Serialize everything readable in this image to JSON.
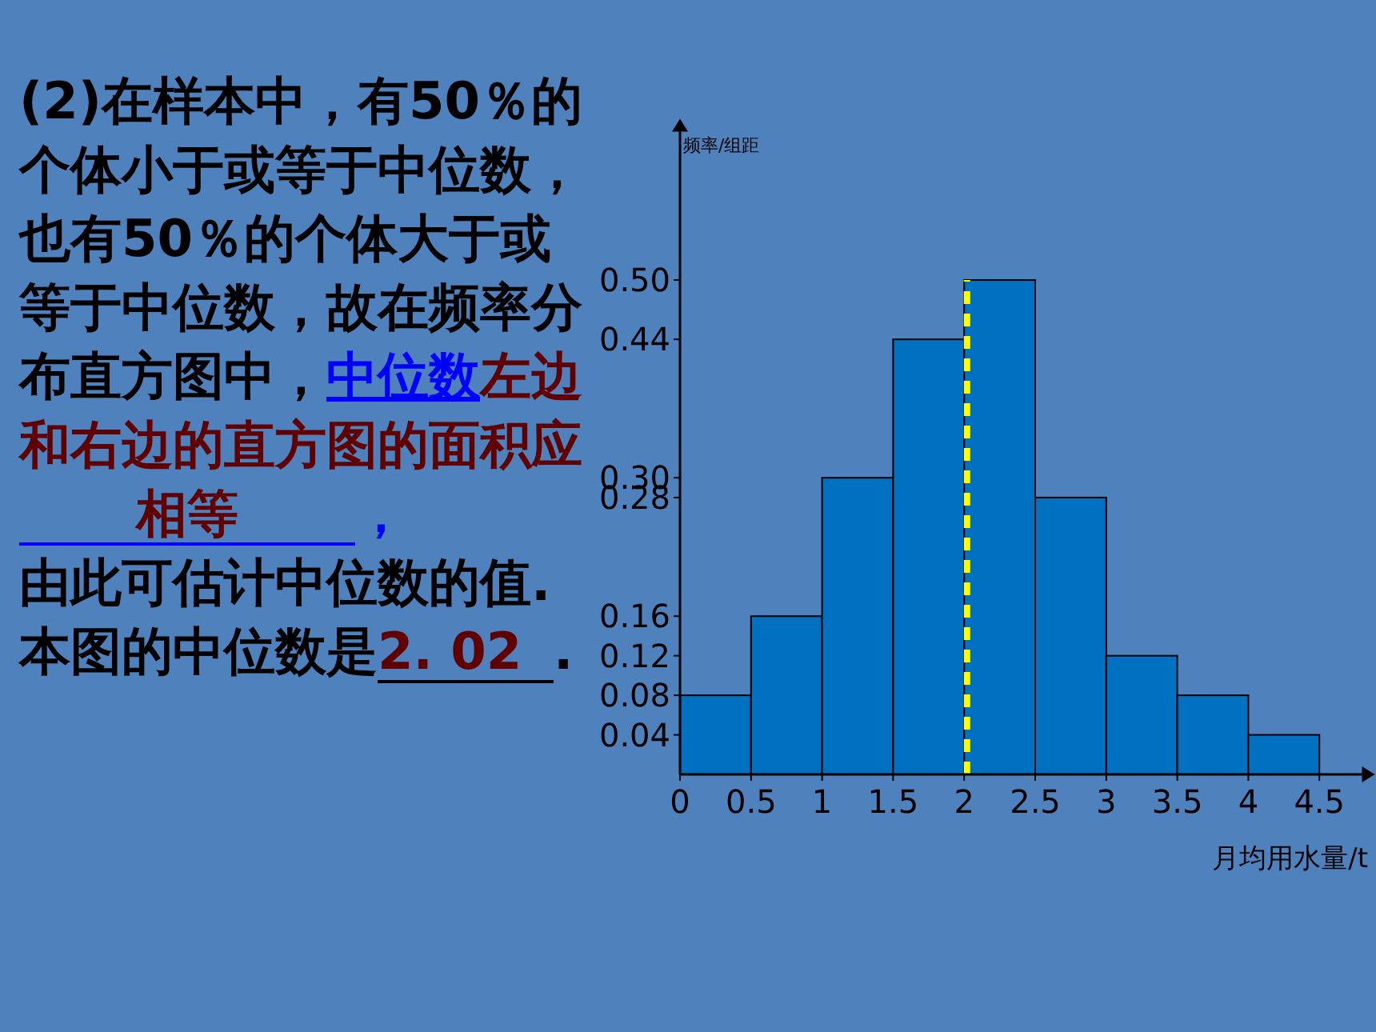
{
  "chart_data": {
    "type": "histogram",
    "ylabel": "频率/组距",
    "xlabel": "月均用水量/t",
    "bins": [
      0,
      0.5,
      1,
      1.5,
      2,
      2.5,
      3,
      3.5,
      4,
      4.5
    ],
    "values": [
      0.08,
      0.16,
      0.3,
      0.44,
      0.5,
      0.28,
      0.12,
      0.08,
      0.04
    ],
    "color": "#0070c0",
    "xlim": [
      0,
      4.8
    ],
    "ylim": [
      0,
      0.65
    ],
    "xticks": [
      0,
      0.5,
      1,
      1.5,
      2,
      2.5,
      3,
      3.5,
      4,
      4.5
    ],
    "yticks": [
      {
        "value": 0.04,
        "label": "0.04"
      },
      {
        "value": 0.08,
        "label": "0.08"
      },
      {
        "value": 0.12,
        "label": "0.12"
      },
      {
        "value": 0.16,
        "label": "0.16"
      },
      {
        "value": 0.28,
        "label": "0.28"
      },
      {
        "value": 0.3,
        "label": "0.30"
      },
      {
        "value": 0.44,
        "label": "0.44"
      },
      {
        "value": 0.5,
        "label": "0.50"
      }
    ],
    "ref_lines": [
      {
        "axis": "x",
        "value": 2.02,
        "color": "#ffff00",
        "line_style": "dashed"
      }
    ],
    "annotations": [
      "(2)在样本中，有50％的个体小于或等于中位数，也有50％的个体大于或等于中位数，故在频率分布直方图中，",
      "中位数",
      "左边和右边的直方图的面积应",
      "相等",
      "，",
      "由此可估计中位数的值. 本图的中位数是",
      "2. 02",
      "."
    ]
  }
}
